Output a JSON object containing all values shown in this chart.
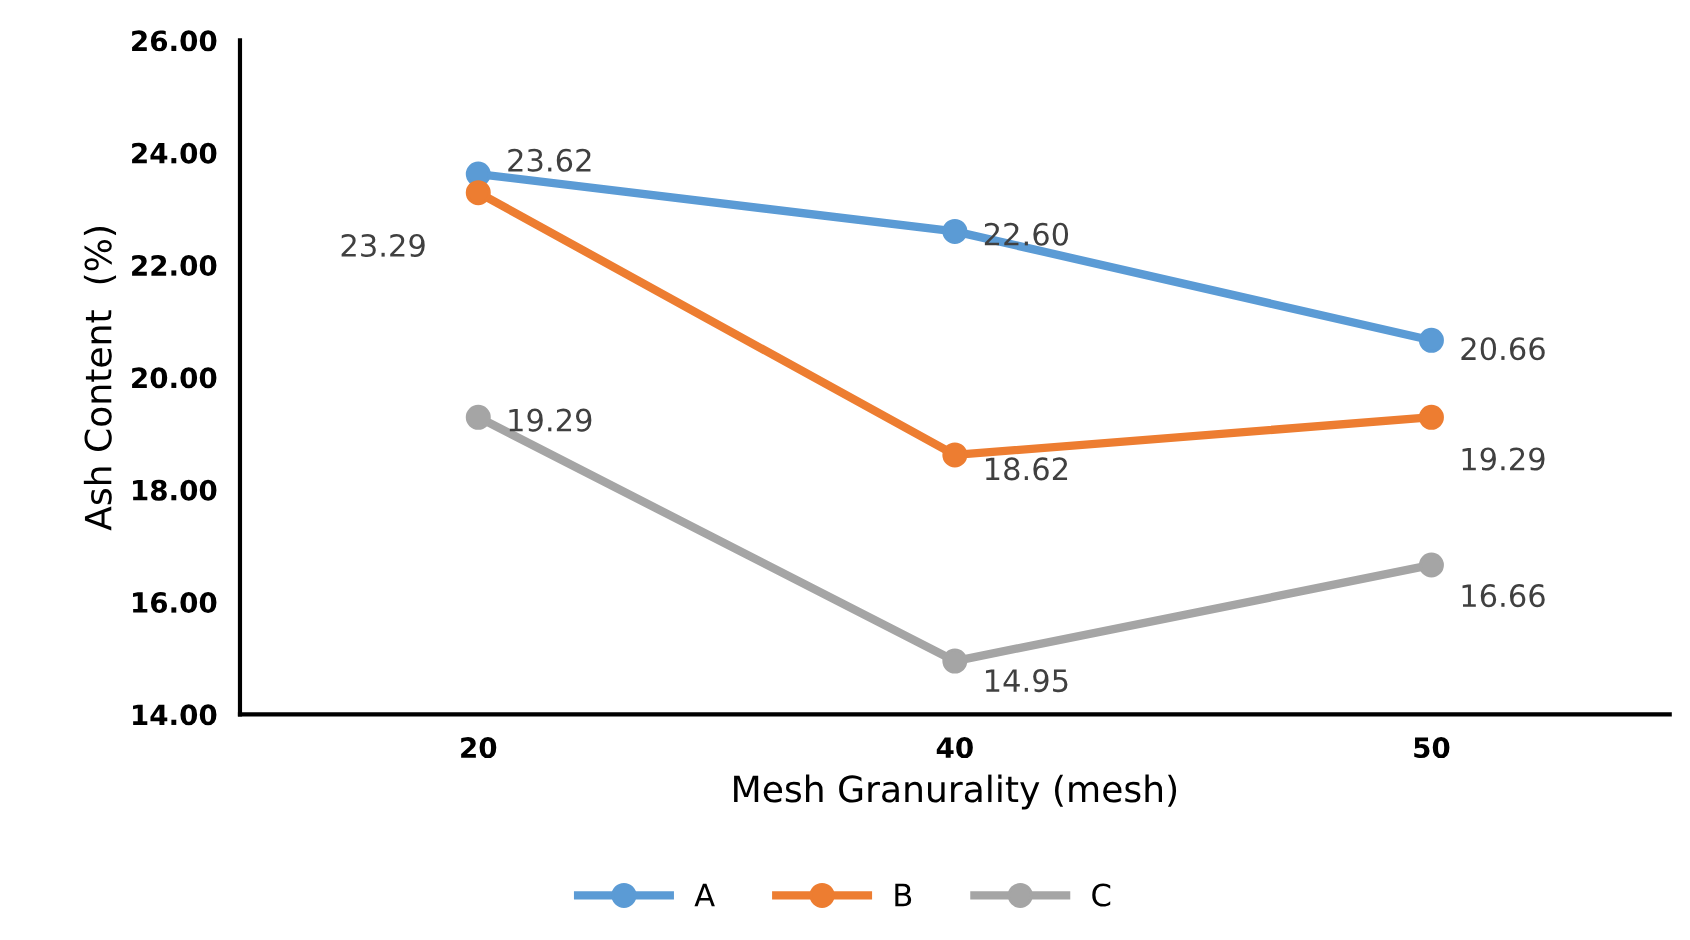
{
  "chart_data": {
    "type": "line",
    "xlabel": "Mesh Granurality (mesh)",
    "ylabel": "Ash Content  (%)",
    "categories": [
      "20",
      "40",
      "50"
    ],
    "series": [
      {
        "name": "A",
        "color": "#5b9bd5",
        "values": [
          23.62,
          22.6,
          20.66
        ],
        "value_labels": [
          "23.62",
          "22.60",
          "20.66"
        ]
      },
      {
        "name": "B",
        "color": "#ed7d31",
        "values": [
          23.29,
          18.62,
          19.29
        ],
        "value_labels": [
          "23.29",
          "18.62",
          "19.29"
        ]
      },
      {
        "name": "C",
        "color": "#a5a5a5",
        "values": [
          19.29,
          14.95,
          16.66
        ],
        "value_labels": [
          "19.29",
          "14.95",
          "16.66"
        ]
      }
    ],
    "ylim": [
      14,
      26
    ],
    "yticks": [
      {
        "value": 14,
        "label": "14.00"
      },
      {
        "value": 16,
        "label": "16.00"
      },
      {
        "value": 18,
        "label": "18.00"
      },
      {
        "value": 20,
        "label": "20.00"
      },
      {
        "value": 22,
        "label": "22.00"
      },
      {
        "value": 24,
        "label": "24.00"
      },
      {
        "value": 26,
        "label": "26.00"
      }
    ],
    "grid": false,
    "legend": "bottom",
    "marker": "circle",
    "line_style": "solid"
  }
}
